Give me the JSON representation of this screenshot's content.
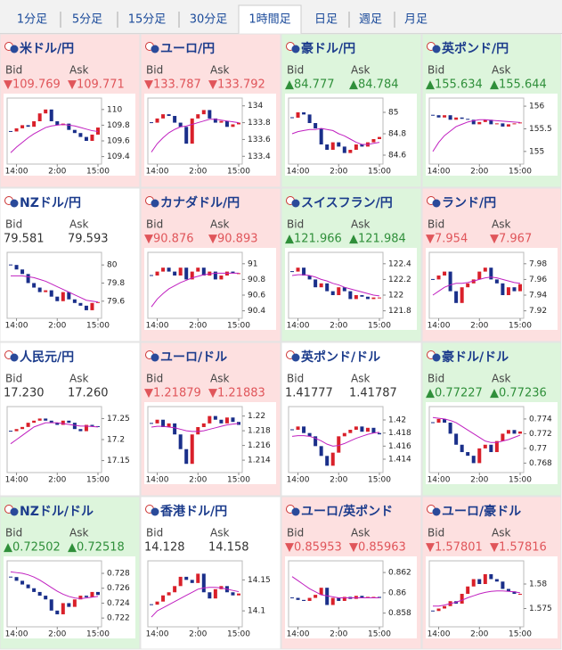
{
  "tabs": [
    "1分足",
    "5分足",
    "15分足",
    "30分足",
    "1時間足",
    "日足",
    "週足",
    "月足"
  ],
  "active_tab": 4,
  "labels": {
    "bid": "Bid",
    "ask": "Ask"
  },
  "xticks": [
    {
      "value": 1,
      "label": "14:00"
    },
    {
      "value": 8,
      "label": "2:00"
    },
    {
      "value": 15,
      "label": "15:00"
    }
  ],
  "tiles": [
    {
      "name": "米ドル/円",
      "bid": "▼109.769",
      "ask": "▼109.771",
      "trend": "down",
      "chart": {
        "ylim": [
          109.35,
          110.1
        ],
        "yticks": [
          110,
          109.8,
          109.6,
          109.4
        ],
        "close": [
          109.72,
          109.76,
          109.8,
          109.78,
          109.85,
          109.95,
          110.0,
          109.85,
          109.8,
          109.82,
          109.74,
          109.7,
          109.65,
          109.6,
          109.68,
          109.77
        ],
        "ma": [
          109.45,
          109.52,
          109.58,
          109.64,
          109.69,
          109.73,
          109.77,
          109.79,
          109.8,
          109.81,
          109.8,
          109.79,
          109.77,
          109.75,
          109.73,
          109.72
        ]
      }
    },
    {
      "name": "ユーロ/円",
      "bid": "▼133.787",
      "ask": "▼133.792",
      "trend": "down",
      "chart": {
        "ylim": [
          133.35,
          134.05
        ],
        "yticks": [
          134,
          133.8,
          133.6,
          133.4
        ],
        "close": [
          133.8,
          133.85,
          133.9,
          133.88,
          133.8,
          133.75,
          133.55,
          133.85,
          133.9,
          133.95,
          133.85,
          133.8,
          133.82,
          133.75,
          133.78,
          133.8
        ],
        "ma": [
          133.45,
          133.55,
          133.62,
          133.68,
          133.72,
          133.75,
          133.76,
          133.78,
          133.8,
          133.82,
          133.84,
          133.84,
          133.83,
          133.82,
          133.81,
          133.8
        ]
      }
    },
    {
      "name": "豪ドル/円",
      "bid": "▲84.777",
      "ask": "▲84.784",
      "trend": "up",
      "chart": {
        "ylim": [
          84.55,
          85.1
        ],
        "yticks": [
          85,
          84.8,
          84.6
        ],
        "close": [
          84.95,
          85.0,
          84.98,
          84.9,
          84.85,
          84.7,
          84.65,
          84.72,
          84.68,
          84.62,
          84.65,
          84.7,
          84.68,
          84.72,
          84.75,
          84.77
        ],
        "ma": [
          84.8,
          84.82,
          84.83,
          84.84,
          84.84,
          84.85,
          84.84,
          84.83,
          84.8,
          84.78,
          84.75,
          84.72,
          84.7,
          84.7,
          84.71,
          84.72
        ]
      }
    },
    {
      "name": "英ポンド/円",
      "bid": "▲155.634",
      "ask": "▲155.644",
      "trend": "up",
      "chart": {
        "ylim": [
          154.8,
          156.1
        ],
        "yticks": [
          156,
          155.5,
          155
        ],
        "close": [
          155.8,
          155.75,
          155.8,
          155.7,
          155.75,
          155.72,
          155.7,
          155.6,
          155.65,
          155.7,
          155.6,
          155.62,
          155.55,
          155.6,
          155.62,
          155.64
        ],
        "ma": [
          155.0,
          155.2,
          155.35,
          155.45,
          155.55,
          155.6,
          155.65,
          155.68,
          155.7,
          155.7,
          155.69,
          155.68,
          155.67,
          155.66,
          155.65,
          155.64
        ]
      }
    },
    {
      "name": "NZドル/円",
      "bid": "79.581",
      "ask": "79.593",
      "trend": "flat",
      "chart": {
        "ylim": [
          79.45,
          80.1
        ],
        "yticks": [
          80,
          79.8,
          79.6
        ],
        "close": [
          80.0,
          79.95,
          79.9,
          79.8,
          79.75,
          79.7,
          79.72,
          79.65,
          79.6,
          79.7,
          79.62,
          79.58,
          79.55,
          79.5,
          79.58,
          79.59
        ],
        "ma": [
          79.88,
          79.88,
          79.88,
          79.87,
          79.86,
          79.84,
          79.82,
          79.79,
          79.76,
          79.73,
          79.7,
          79.67,
          79.64,
          79.61,
          79.6,
          79.59
        ]
      }
    },
    {
      "name": "カナダドル/円",
      "bid": "▼90.876",
      "ask": "▼90.893",
      "trend": "down",
      "chart": {
        "ylim": [
          90.35,
          91.1
        ],
        "yticks": [
          91,
          90.8,
          90.6,
          90.4
        ],
        "close": [
          90.85,
          90.9,
          90.95,
          90.9,
          90.85,
          90.95,
          90.8,
          90.9,
          90.95,
          90.85,
          90.9,
          90.8,
          90.85,
          90.9,
          90.88,
          90.88
        ],
        "ma": [
          90.45,
          90.55,
          90.62,
          90.68,
          90.72,
          90.76,
          90.79,
          90.82,
          90.84,
          90.86,
          90.87,
          90.88,
          90.88,
          90.88,
          90.88,
          90.88
        ]
      }
    },
    {
      "name": "スイスフラン/円",
      "bid": "▲121.966",
      "ask": "▲121.984",
      "trend": "up",
      "chart": {
        "ylim": [
          121.75,
          122.5
        ],
        "yticks": [
          122.4,
          122.2,
          122,
          121.8
        ],
        "close": [
          122.3,
          122.35,
          122.25,
          122.2,
          122.1,
          122.15,
          122.05,
          122.0,
          122.1,
          122.05,
          121.95,
          122.0,
          121.98,
          121.95,
          121.97,
          121.97
        ],
        "ma": [
          122.25,
          122.26,
          122.26,
          122.25,
          122.23,
          122.2,
          122.18,
          122.15,
          122.13,
          122.1,
          122.08,
          122.06,
          122.04,
          122.02,
          122.0,
          121.99
        ]
      }
    },
    {
      "name": "ランド/円",
      "bid": "▼7.954",
      "ask": "▼7.967",
      "trend": "down",
      "chart": {
        "ylim": [
          7.915,
          7.99
        ],
        "yticks": [
          7.98,
          7.96,
          7.94,
          7.92
        ],
        "close": [
          7.96,
          7.965,
          7.97,
          7.945,
          7.93,
          7.95,
          7.955,
          7.96,
          7.97,
          7.975,
          7.96,
          7.955,
          7.94,
          7.95,
          7.945,
          7.954
        ],
        "ma": [
          7.94,
          7.945,
          7.95,
          7.953,
          7.955,
          7.955,
          7.956,
          7.958,
          7.96,
          7.962,
          7.963,
          7.962,
          7.96,
          7.958,
          7.956,
          7.955
        ]
      }
    },
    {
      "name": "人民元/円",
      "bid": "17.230",
      "ask": "17.260",
      "trend": "flat",
      "chart": {
        "ylim": [
          17.13,
          17.27
        ],
        "yticks": [
          17.25,
          17.2,
          17.15
        ],
        "close": [
          17.22,
          17.225,
          17.23,
          17.24,
          17.245,
          17.25,
          17.245,
          17.24,
          17.235,
          17.245,
          17.24,
          17.225,
          17.22,
          17.235,
          17.232,
          17.23
        ],
        "ma": [
          17.19,
          17.2,
          17.21,
          17.22,
          17.23,
          17.235,
          17.24,
          17.24,
          17.24,
          17.238,
          17.236,
          17.234,
          17.232,
          17.232,
          17.231,
          17.23
        ]
      }
    },
    {
      "name": "ユーロ/ドル",
      "bid": "▼1.21879",
      "ask": "▼1.21883",
      "trend": "down",
      "chart": {
        "ylim": [
          1.2128,
          1.2208
        ],
        "yticks": [
          1.22,
          1.218,
          1.216,
          1.214
        ],
        "close": [
          1.219,
          1.2195,
          1.2185,
          1.219,
          1.2175,
          1.2155,
          1.2135,
          1.2175,
          1.2185,
          1.219,
          1.22,
          1.2195,
          1.219,
          1.2198,
          1.2192,
          1.2188
        ],
        "ma": [
          1.2185,
          1.2186,
          1.2186,
          1.2185,
          1.2184,
          1.2182,
          1.218,
          1.2179,
          1.2179,
          1.218,
          1.2182,
          1.2184,
          1.2186,
          1.2188,
          1.2189,
          1.219
        ]
      }
    },
    {
      "name": "英ポンド/ドル",
      "bid": "1.41777",
      "ask": "1.41787",
      "trend": "flat",
      "chart": {
        "ylim": [
          1.4125,
          1.4215
        ],
        "yticks": [
          1.42,
          1.418,
          1.416,
          1.414
        ],
        "close": [
          1.4185,
          1.419,
          1.418,
          1.4175,
          1.416,
          1.4145,
          1.413,
          1.415,
          1.4175,
          1.418,
          1.4185,
          1.419,
          1.4182,
          1.4188,
          1.418,
          1.4178
        ],
        "ma": [
          1.4175,
          1.4176,
          1.4176,
          1.4175,
          1.4172,
          1.4168,
          1.4163,
          1.416,
          1.4161,
          1.4164,
          1.4168,
          1.4172,
          1.4175,
          1.4178,
          1.418,
          1.4181
        ]
      }
    },
    {
      "name": "豪ドル/ドル",
      "bid": "▲0.77227",
      "ask": "▲0.77236",
      "trend": "up",
      "chart": {
        "ylim": [
          0.7672,
          0.7752
        ],
        "yticks": [
          0.774,
          0.772,
          0.77,
          0.768
        ],
        "close": [
          0.7735,
          0.774,
          0.7735,
          0.772,
          0.7705,
          0.7695,
          0.769,
          0.768,
          0.77,
          0.7705,
          0.7695,
          0.771,
          0.772,
          0.7725,
          0.772,
          0.7723
        ],
        "ma": [
          0.7742,
          0.7741,
          0.774,
          0.7738,
          0.7735,
          0.773,
          0.7725,
          0.772,
          0.7715,
          0.771,
          0.7708,
          0.7708,
          0.771,
          0.7712,
          0.7715,
          0.7718
        ]
      }
    },
    {
      "name": "NZドル/ドル",
      "bid": "▲0.72502",
      "ask": "▲0.72518",
      "trend": "up",
      "chart": {
        "ylim": [
          0.7213,
          0.7292
        ],
        "yticks": [
          0.728,
          0.726,
          0.724,
          0.722
        ],
        "close": [
          0.7275,
          0.727,
          0.7265,
          0.726,
          0.7255,
          0.725,
          0.7245,
          0.723,
          0.7225,
          0.724,
          0.7235,
          0.7245,
          0.725,
          0.7248,
          0.7255,
          0.7251
        ],
        "ma": [
          0.7282,
          0.7281,
          0.728,
          0.7278,
          0.7275,
          0.7271,
          0.7266,
          0.7261,
          0.7256,
          0.7252,
          0.7249,
          0.7247,
          0.7246,
          0.7247,
          0.7248,
          0.7249
        ]
      }
    },
    {
      "name": "香港ドル/円",
      "bid": "14.128",
      "ask": "14.158",
      "trend": "flat",
      "chart": {
        "ylim": [
          14.08,
          14.175
        ],
        "yticks": [
          14.15,
          14.1
        ],
        "close": [
          14.11,
          14.115,
          14.125,
          14.13,
          14.14,
          14.155,
          14.15,
          14.145,
          14.16,
          14.13,
          14.12,
          14.135,
          14.14,
          14.13,
          14.125,
          14.128
        ],
        "ma": [
          14.09,
          14.1,
          14.105,
          14.11,
          14.115,
          14.12,
          14.125,
          14.13,
          14.135,
          14.137,
          14.138,
          14.138,
          14.137,
          14.135,
          14.133,
          14.131
        ]
      }
    },
    {
      "name": "ユーロ/英ポンド",
      "bid": "▼0.85953",
      "ask": "▼0.85963",
      "trend": "down",
      "chart": {
        "ylim": [
          0.857,
          0.8628
        ],
        "yticks": [
          0.862,
          0.86,
          0.858
        ],
        "close": [
          0.8595,
          0.8593,
          0.8592,
          0.8595,
          0.8598,
          0.8605,
          0.8588,
          0.8595,
          0.8592,
          0.8596,
          0.8594,
          0.8597,
          0.8595,
          0.8596,
          0.8596,
          0.8595
        ],
        "ma": [
          0.8616,
          0.8612,
          0.8608,
          0.8604,
          0.8601,
          0.8598,
          0.8597,
          0.8596,
          0.8595,
          0.8595,
          0.8595,
          0.8595,
          0.8595,
          0.8595,
          0.8595,
          0.8595
        ]
      }
    },
    {
      "name": "ユーロ/豪ドル",
      "bid": "▼1.57801",
      "ask": "▼1.57816",
      "trend": "down",
      "chart": {
        "ylim": [
          1.572,
          1.584
        ],
        "yticks": [
          1.58,
          1.575
        ],
        "close": [
          1.5745,
          1.575,
          1.5755,
          1.5765,
          1.576,
          1.578,
          1.5795,
          1.581,
          1.58,
          1.582,
          1.581,
          1.5805,
          1.579,
          1.5785,
          1.578,
          1.578
        ],
        "ma": [
          1.5755,
          1.5755,
          1.5757,
          1.576,
          1.5763,
          1.5767,
          1.5772,
          1.5776,
          1.578,
          1.5783,
          1.5785,
          1.5786,
          1.5786,
          1.5785,
          1.5784,
          1.5782
        ]
      }
    }
  ]
}
